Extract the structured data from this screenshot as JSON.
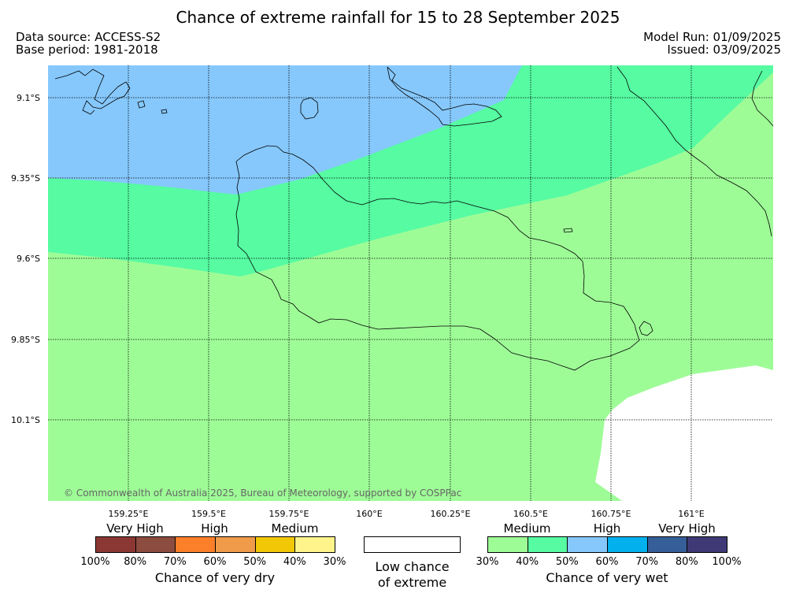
{
  "title": "Chance of extreme rainfall for 15 to 28 September 2025",
  "meta": {
    "data_source": "Data source: ACCESS-S2",
    "base_period": "Base period: 1981-2018",
    "model_run": "Model Run: 01/09/2025",
    "issued": "Issued: 03/09/2025"
  },
  "map": {
    "lat_labels": [
      "9.1°S",
      "9.35°S",
      "9.6°S",
      "9.85°S",
      "10.1°S"
    ],
    "lon_labels": [
      "159.25°E",
      "159.5°E",
      "159.75°E",
      "160°E",
      "160.25°E",
      "160.5°E",
      "160.75°E",
      "161°E"
    ],
    "copyright": "© Commonwealth of Australia 2025, Bureau of Meteorology, supported by COSPPac",
    "colors": {
      "medium_wet": "#9efc97",
      "high_wet": "#56fba2",
      "very_high_wet": "#86c8fc",
      "low": "#ffffff"
    }
  },
  "legend": {
    "dry": {
      "headings": [
        "Very High",
        "High",
        "Medium"
      ],
      "colors": [
        "#8b3834",
        "#8c4c3f",
        "#fc7f29",
        "#f09b4a",
        "#f2c806",
        "#fef48b"
      ],
      "ticks": [
        "100%",
        "80%",
        "70%",
        "60%",
        "50%",
        "40%",
        "30%"
      ],
      "title": "Chance of very dry"
    },
    "low": {
      "line1": "Low chance",
      "line2": "of extreme"
    },
    "wet": {
      "headings": [
        "Medium",
        "High",
        "Very High"
      ],
      "colors": [
        "#9efc97",
        "#56fba2",
        "#86c8fc",
        "#01b0ed",
        "#365f99",
        "#3f3a76"
      ],
      "ticks": [
        "30%",
        "40%",
        "50%",
        "60%",
        "70%",
        "80%",
        "100%"
      ],
      "title": "Chance of very wet"
    }
  }
}
